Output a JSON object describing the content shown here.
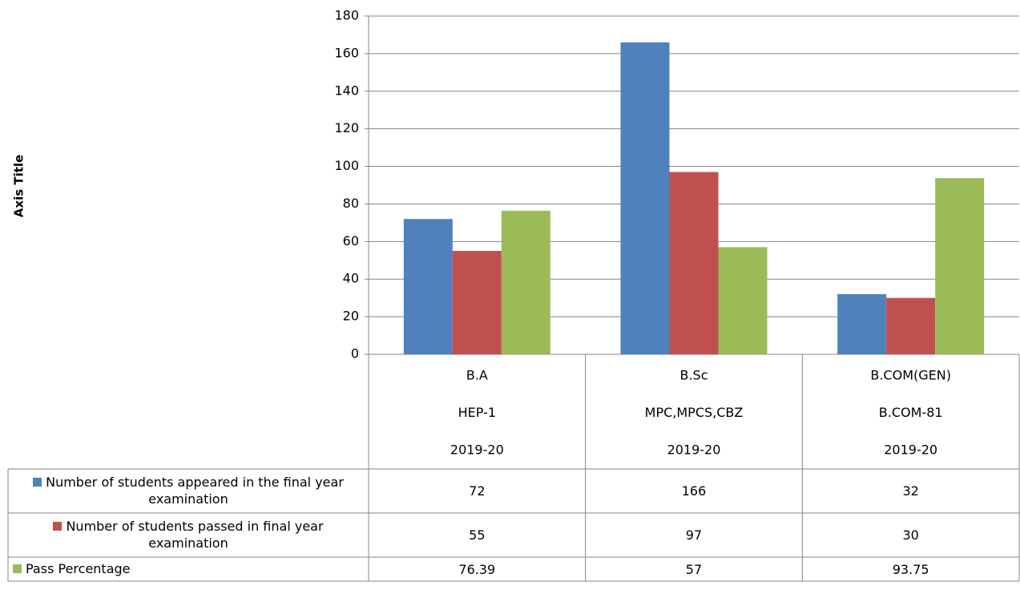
{
  "chart_data": {
    "type": "bar",
    "y_axis_title": "Axis Title",
    "categories": [
      [
        "B.A",
        "HEP-1",
        "2019-20"
      ],
      [
        "B.Sc",
        "MPC,MPCS,CBZ",
        "2019-20"
      ],
      [
        "B.COM(GEN)",
        "B.COM-81",
        "2019-20"
      ]
    ],
    "series": [
      {
        "name": "Number of students appeared in the final year examination",
        "color": "#4f81bd",
        "values": [
          72,
          166,
          32
        ]
      },
      {
        "name": "Number of students passed in final year examination",
        "color": "#c0504d",
        "values": [
          55,
          97,
          30
        ]
      },
      {
        "name": "Pass Percentage",
        "color": "#9bbb59",
        "values": [
          76.39,
          57,
          93.75
        ]
      }
    ],
    "ylim": [
      0,
      180
    ],
    "yticks": [
      0,
      20,
      40,
      60,
      80,
      100,
      120,
      140,
      160,
      180
    ],
    "grid": true
  }
}
